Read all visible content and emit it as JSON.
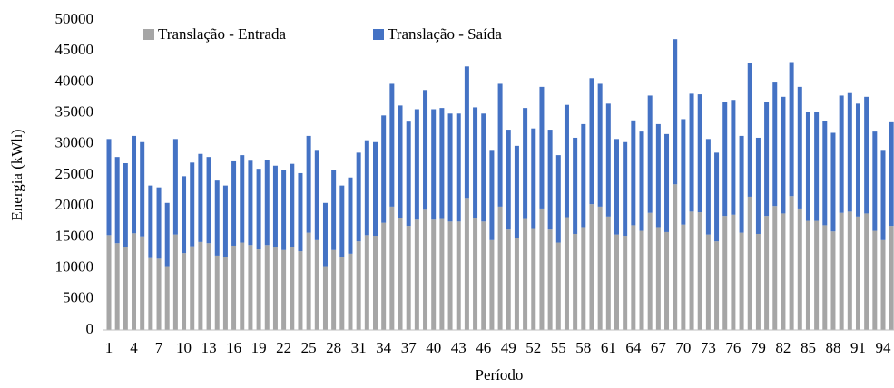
{
  "chart_data": {
    "type": "stacked_bar",
    "x_label": "Período",
    "y_label": "Energia (kWh)",
    "categories": [
      1,
      null,
      null,
      4,
      null,
      null,
      7,
      null,
      null,
      10,
      null,
      null,
      13,
      null,
      null,
      16,
      null,
      null,
      19,
      null,
      null,
      22,
      null,
      null,
      25,
      null,
      null,
      28,
      null,
      null,
      31,
      null,
      null,
      34,
      null,
      null,
      37,
      null,
      null,
      40,
      null,
      null,
      43,
      null,
      null,
      46,
      null,
      null,
      49,
      null,
      null,
      52,
      null,
      null,
      55,
      null,
      null,
      58,
      null,
      null,
      61,
      null,
      null,
      64,
      null,
      null,
      67,
      null,
      null,
      70,
      null,
      null,
      73,
      null,
      null,
      76,
      null,
      null,
      79,
      null,
      null,
      82,
      null,
      null,
      85,
      null,
      null,
      88,
      null,
      null,
      91,
      null,
      null,
      94,
      null
    ],
    "series": [
      {
        "name": "Translação - Entrada",
        "color": "#a6a6a6",
        "values": [
          15300,
          14000,
          13400,
          15600,
          15100,
          11600,
          11500,
          10300,
          15400,
          12400,
          13500,
          14200,
          14000,
          12000,
          11700,
          13600,
          14100,
          13700,
          13000,
          13700,
          13300,
          12900,
          13400,
          12700,
          15700,
          14500,
          10300,
          12900,
          11700,
          12300,
          14300,
          15300,
          15200,
          17300,
          19900,
          18100,
          16800,
          17800,
          19400,
          17800,
          17900,
          17500,
          17500,
          21300,
          18000,
          17500,
          14500,
          19900,
          16200,
          14900,
          17900,
          16300,
          19600,
          16200,
          14100,
          18200,
          15500,
          16600,
          20300,
          19900,
          18300,
          15400,
          15200,
          16900,
          16000,
          18900,
          16600,
          15800,
          23500,
          17000,
          19100,
          19000,
          15400,
          14300,
          18400,
          18600,
          15700,
          21500,
          15500,
          18400,
          20000,
          18800,
          21600,
          19600,
          17600,
          17600,
          16900,
          15900,
          18900,
          19100,
          18300,
          18800,
          16000,
          14500,
          16800
        ]
      },
      {
        "name": "Translação - Saída",
        "color": "#4472c4",
        "values": [
          15500,
          13900,
          13500,
          15700,
          15200,
          11700,
          11500,
          10200,
          15400,
          12400,
          13500,
          14200,
          13900,
          12100,
          11600,
          13600,
          14100,
          13600,
          13000,
          13700,
          13200,
          12900,
          13400,
          12600,
          15600,
          14400,
          10200,
          12900,
          11600,
          12300,
          14300,
          15300,
          15100,
          17300,
          19800,
          18100,
          16800,
          17800,
          19300,
          17800,
          17900,
          17400,
          17400,
          21200,
          17900,
          17400,
          14400,
          19800,
          16100,
          14800,
          17900,
          16200,
          19600,
          16100,
          14100,
          18100,
          15500,
          16600,
          20300,
          19800,
          18200,
          15400,
          15100,
          16900,
          16000,
          18900,
          16600,
          15800,
          23400,
          17000,
          19000,
          19000,
          15400,
          14300,
          18400,
          18500,
          15600,
          21500,
          15500,
          18400,
          19900,
          18800,
          21600,
          19600,
          17500,
          17600,
          16800,
          15900,
          18900,
          19100,
          18200,
          18800,
          16000,
          14400,
          16700
        ]
      }
    ],
    "ylim": [
      0,
      50000
    ],
    "yticks": [
      0,
      5000,
      10000,
      15000,
      20000,
      25000,
      30000,
      35000,
      40000,
      45000,
      50000
    ],
    "grid": false,
    "legend": "top-left"
  }
}
